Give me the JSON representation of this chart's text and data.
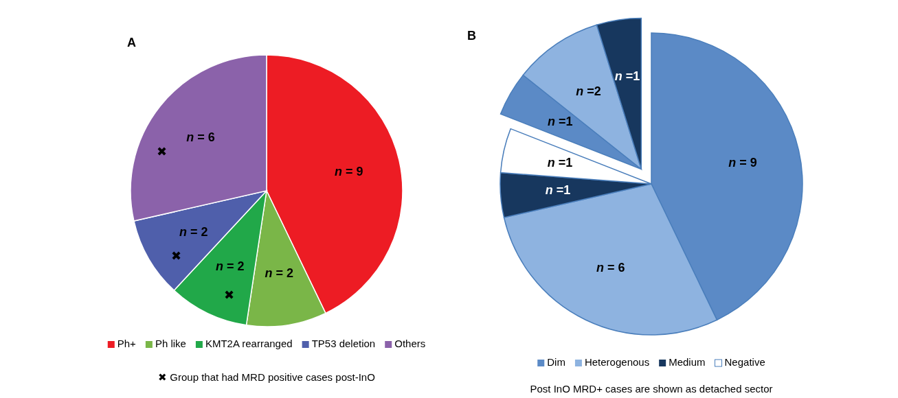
{
  "chart_data": [
    {
      "type": "pie",
      "title": "A",
      "categories": [
        "Ph+",
        "Ph like",
        "KMT2A rearranged",
        "TP53 deletion",
        "Others"
      ],
      "values": [
        9,
        2,
        2,
        2,
        6
      ],
      "colors": [
        "#ed1c24",
        "#7ab648",
        "#21a849",
        "#4f5fab",
        "#8b62aa"
      ],
      "value_labels": [
        "n = 9",
        "n = 2",
        "n = 2",
        "n = 2",
        "n = 6"
      ],
      "legend": "bottom",
      "annotations": [
        {
          "text": "✖",
          "x": "KMT2A rearranged"
        },
        {
          "text": "✖",
          "x": "TP53 deletion"
        },
        {
          "text": "✖",
          "x": "Others"
        },
        "✖ Group that had MRD positive cases post-InO"
      ]
    },
    {
      "type": "pie",
      "title": "B",
      "categories": [
        "Dim",
        "Heterogenous",
        "Medium",
        "Negative",
        null,
        null,
        null
      ],
      "colors": [
        "#5b8ac6",
        "#8eb3e0",
        "#17375e",
        "#ffffff",
        "#5b8ac6",
        "#8eb3e0",
        "#17375e"
      ],
      "values": [
        9,
        6,
        1,
        1,
        1,
        2,
        1
      ],
      "value_labels": [
        "n = 9",
        "n = 6",
        "n =1",
        "n =1",
        "n =1",
        "n =2",
        "n =1"
      ],
      "legend": "bottom",
      "annotations": [
        "Post InO MRD+ cases are shown as detached sector"
      ]
    }
  ]
}
